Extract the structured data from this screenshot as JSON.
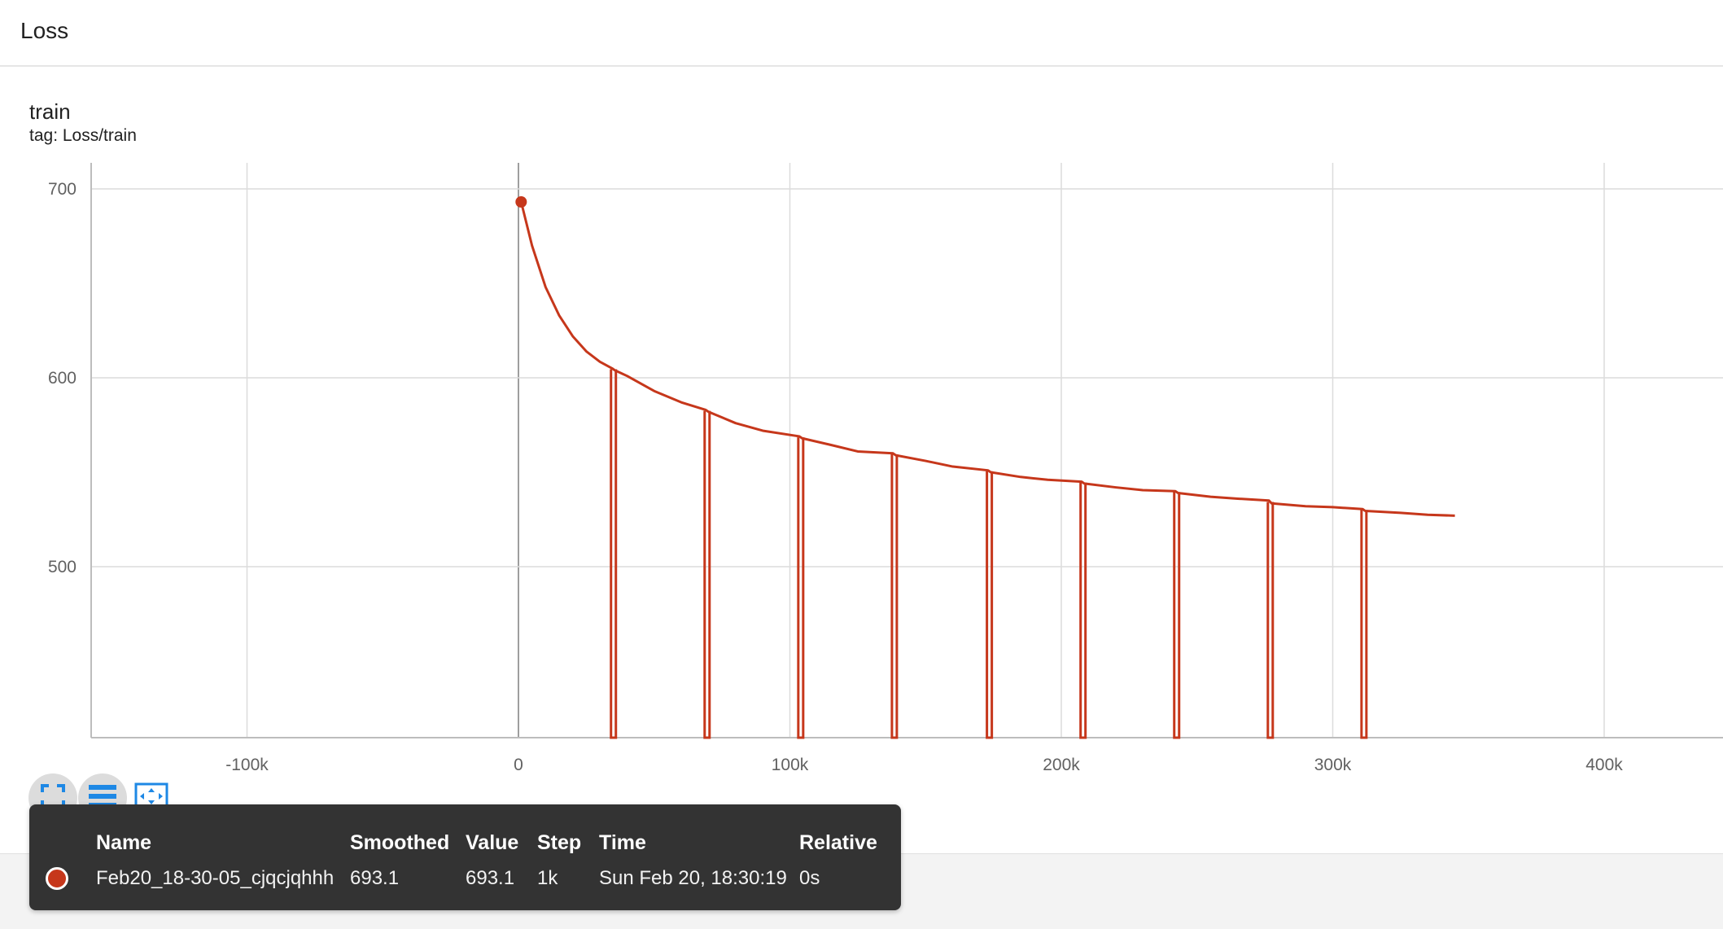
{
  "header": {
    "title": "Loss"
  },
  "card": {
    "title": "train",
    "tag": "tag: Loss/train"
  },
  "chart_data": {
    "type": "line",
    "title": "train",
    "xlim": [
      -160000,
      445000
    ],
    "ylim": [
      450,
      710
    ],
    "x_ticks": [
      -100000,
      0,
      100000,
      200000,
      300000,
      400000
    ],
    "x_tick_labels": [
      "-100k",
      "0",
      "100k",
      "200k",
      "300k",
      "400k"
    ],
    "y_ticks": [
      500,
      600,
      700
    ],
    "y_tick_labels": [
      "500",
      "600",
      "700"
    ],
    "grid": true,
    "series": [
      {
        "name": "Feb20_18-30-05_cjqcjqhhh",
        "color": "#c6371b",
        "x": [
          1000,
          5000,
          10000,
          15000,
          20000,
          25000,
          30000,
          34500,
          35500,
          40000,
          50000,
          60000,
          69000,
          70000,
          80000,
          90000,
          103500,
          104500,
          115000,
          125000,
          138000,
          139000,
          150000,
          160000,
          173000,
          174000,
          185000,
          195000,
          207500,
          208500,
          220000,
          230000,
          242000,
          243000,
          255000,
          265000,
          276500,
          277500,
          290000,
          300000,
          311000,
          312000,
          325000,
          335000,
          345000
        ],
        "y": [
          693.1,
          670,
          648,
          633,
          622,
          614,
          608.5,
          605,
          604,
          601,
          593,
          587,
          583,
          582,
          576,
          572,
          569,
          568,
          564.5,
          561,
          560,
          559,
          556,
          553,
          551,
          550,
          547.5,
          546,
          545,
          544,
          542,
          540.5,
          540,
          539,
          537,
          536,
          535,
          533.5,
          532,
          531.5,
          530.5,
          529.5,
          528.5,
          527.5,
          527
        ]
      }
    ],
    "drops": [
      35000,
      69500,
      104000,
      138500,
      173500,
      208000,
      242500,
      277000,
      311500
    ],
    "drop_floor": 450,
    "highlight_point": {
      "x": 1000,
      "y": 693.1
    }
  },
  "tooltip": {
    "headers": {
      "name": "Name",
      "smoothed": "Smoothed",
      "value": "Value",
      "step": "Step",
      "time": "Time",
      "relative": "Relative"
    },
    "row": {
      "name": "Feb20_18-30-05_cjqcjqhhh",
      "smoothed": "693.1",
      "value": "693.1",
      "step": "1k",
      "time": "Sun Feb 20, 18:30:19",
      "relative": "0s"
    }
  },
  "colors": {
    "accent": "#1e88e5",
    "series": "#c6371b",
    "tooltip_bg": "#333333"
  },
  "icons": [
    "fullscreen-icon",
    "data-table-icon",
    "fit-domain-icon"
  ]
}
